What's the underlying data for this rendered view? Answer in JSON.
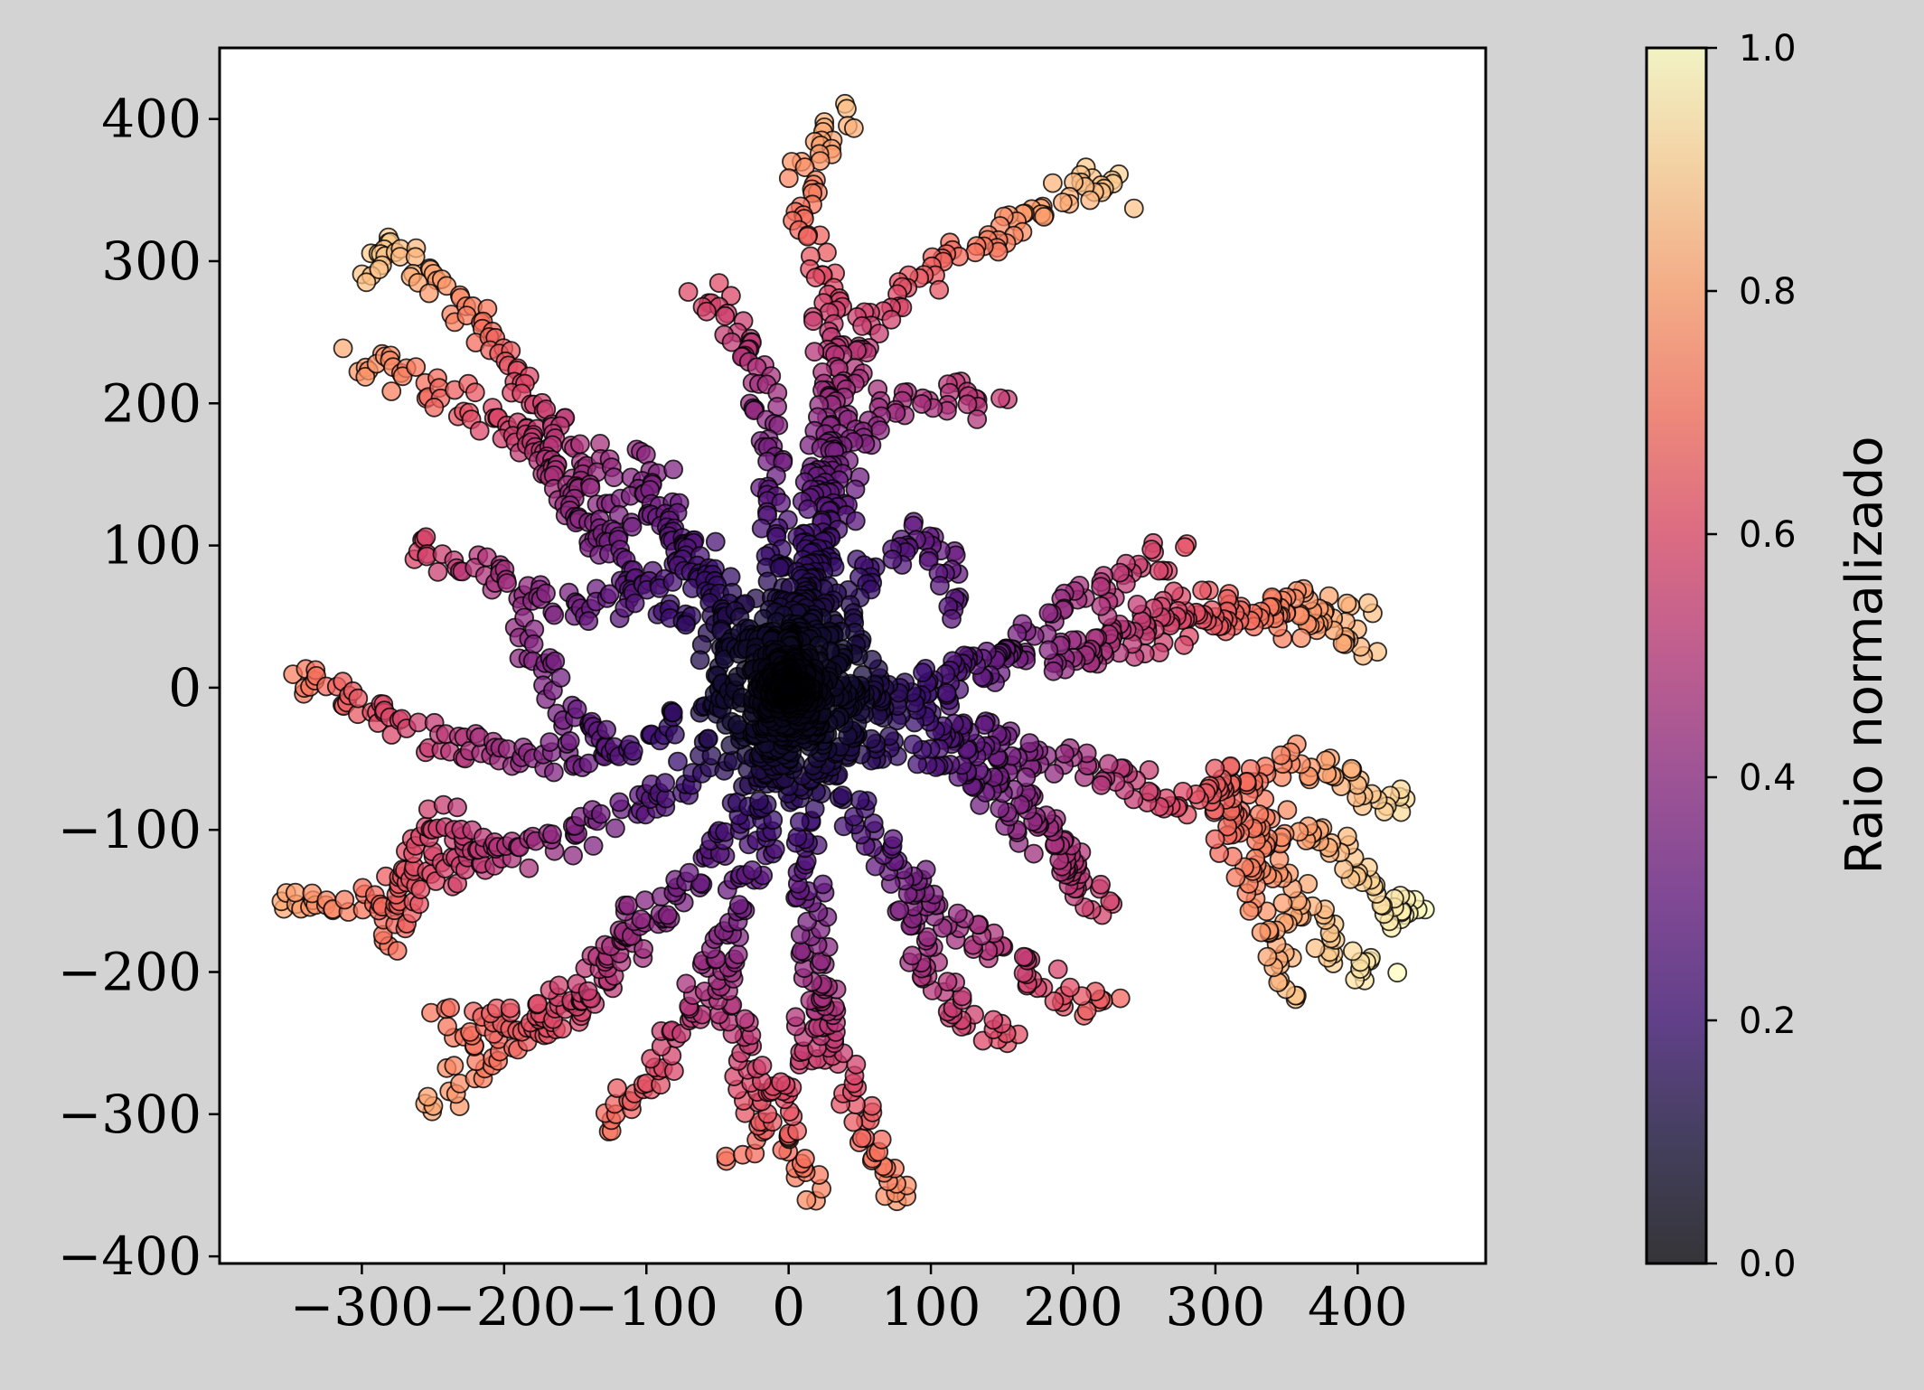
{
  "chart_data": {
    "type": "scatter",
    "title": "",
    "xlabel": "",
    "ylabel": "",
    "xlim": [
      -400,
      490
    ],
    "ylim": [
      -405,
      450
    ],
    "xticks": [
      -300,
      -200,
      -100,
      0,
      100,
      200,
      300,
      400
    ],
    "xtick_labels": [
      "−300",
      "−200",
      "−100",
      "0",
      "100",
      "200",
      "300",
      "400"
    ],
    "yticks": [
      -400,
      -300,
      -200,
      -100,
      0,
      100,
      200,
      300,
      400
    ],
    "ytick_labels": [
      "−400",
      "−300",
      "−200",
      "−100",
      "0",
      "100",
      "200",
      "300",
      "400"
    ],
    "grid": false,
    "colormap": "magma",
    "color_by": "normalized radius",
    "marker_edge_color": "#000000",
    "marker_alpha": 0.75,
    "arms": [
      {
        "x": [
          0,
          5,
          10,
          18,
          25,
          40,
          55,
          70,
          90,
          110,
          130,
          150,
          175,
          200,
          215,
          240
        ],
        "y": [
          0,
          40,
          80,
          130,
          175,
          220,
          250,
          270,
          285,
          300,
          310,
          325,
          340,
          350,
          360,
          345
        ]
      },
      {
        "x": [
          0,
          10,
          18,
          25,
          30,
          25,
          15,
          10,
          20,
          35,
          45
        ],
        "y": [
          0,
          60,
          110,
          170,
          230,
          280,
          320,
          360,
          385,
          395,
          405
        ]
      },
      {
        "x": [
          0,
          -5,
          -10,
          -15,
          -20,
          -35,
          -50,
          -65
        ],
        "y": [
          0,
          60,
          120,
          180,
          230,
          250,
          270,
          280
        ]
      },
      {
        "x": [
          0,
          20,
          40,
          55,
          70,
          90,
          110,
          130,
          150
        ],
        "y": [
          0,
          70,
          140,
          180,
          200,
          205,
          210,
          200,
          195
        ]
      },
      {
        "x": [
          0,
          20,
          40,
          55,
          70,
          85,
          100,
          115,
          120
        ],
        "y": [
          0,
          30,
          60,
          80,
          95,
          100,
          110,
          70,
          50
        ]
      },
      {
        "x": [
          0,
          -20,
          -40,
          -60,
          -80,
          -110,
          -140,
          -170,
          -200,
          -230,
          -260,
          -280,
          -300
        ],
        "y": [
          0,
          30,
          60,
          90,
          110,
          130,
          160,
          190,
          230,
          270,
          300,
          315,
          285
        ]
      },
      {
        "x": [
          -110,
          -140,
          -170,
          -200,
          -230,
          -260,
          -290,
          -310
        ],
        "y": [
          100,
          130,
          160,
          180,
          200,
          215,
          225,
          230
        ]
      },
      {
        "x": [
          -80,
          -110,
          -130,
          -160,
          -190,
          -220,
          -250,
          -270
        ],
        "y": [
          90,
          70,
          55,
          60,
          70,
          80,
          95,
          100
        ]
      },
      {
        "x": [
          -40,
          -60,
          -80,
          -90,
          -100,
          -110
        ],
        "y": [
          30,
          70,
          110,
          140,
          160,
          165
        ]
      },
      {
        "x": [
          -60,
          -80,
          -100,
          -130,
          -150,
          -170,
          -190
        ],
        "y": [
          40,
          60,
          70,
          100,
          130,
          160,
          185
        ]
      },
      {
        "x": [
          0,
          -40,
          -80,
          -120,
          -160,
          -200,
          -240,
          -270,
          -300,
          -330,
          -350
        ],
        "y": [
          0,
          -10,
          -25,
          -40,
          -50,
          -45,
          -40,
          -30,
          -10,
          0,
          10
        ]
      },
      {
        "x": [
          -120,
          -150,
          -170,
          -180,
          -190
        ],
        "y": [
          -40,
          -20,
          10,
          30,
          50
        ]
      },
      {
        "x": [
          0,
          -40,
          -80,
          -120,
          -160,
          -200,
          -240,
          -270,
          -300,
          -330,
          -360
        ],
        "y": [
          0,
          -40,
          -70,
          -90,
          -110,
          -120,
          -130,
          -140,
          -150,
          -155,
          -150
        ]
      },
      {
        "x": [
          -200,
          -230,
          -250,
          -270,
          -285
        ],
        "y": [
          -120,
          -100,
          -90,
          -160,
          -180
        ]
      },
      {
        "x": [
          0,
          -20,
          -50,
          -80,
          -110,
          -140,
          -170,
          -200,
          -230,
          -250
        ],
        "y": [
          0,
          -60,
          -120,
          -150,
          -180,
          -210,
          -230,
          -250,
          -270,
          -300
        ]
      },
      {
        "x": [
          -100,
          -130,
          -160,
          -190,
          -220,
          -250
        ],
        "y": [
          -150,
          -200,
          -230,
          -230,
          -240,
          -230
        ]
      },
      {
        "x": [
          0,
          -10,
          -30,
          -50,
          -70,
          -90,
          -110,
          -130
        ],
        "y": [
          0,
          -80,
          -140,
          -190,
          -230,
          -260,
          -290,
          -310
        ]
      },
      {
        "x": [
          -50,
          -40,
          -30,
          -20,
          -30,
          -40
        ],
        "y": [
          -190,
          -230,
          -260,
          -290,
          -320,
          -330
        ]
      },
      {
        "x": [
          0,
          10,
          15,
          20,
          25,
          35,
          50,
          60,
          70,
          80,
          90
        ],
        "y": [
          0,
          -80,
          -140,
          -190,
          -230,
          -270,
          -300,
          -320,
          -340,
          -355,
          -360
        ]
      },
      {
        "x": [
          20,
          10,
          -10,
          5,
          20
        ],
        "y": [
          -200,
          -260,
          -290,
          -330,
          -360
        ]
      },
      {
        "x": [
          0,
          30,
          60,
          90,
          110,
          130,
          150,
          170,
          190,
          210,
          225
        ],
        "y": [
          0,
          -60,
          -110,
          -140,
          -160,
          -175,
          -190,
          -200,
          -210,
          -220,
          -230
        ]
      },
      {
        "x": [
          80,
          90,
          100,
          120,
          140,
          160
        ],
        "y": [
          -140,
          -180,
          -210,
          -230,
          -240,
          -250
        ]
      },
      {
        "x": [
          0,
          50,
          100,
          140,
          170,
          190,
          210,
          225
        ],
        "y": [
          0,
          -40,
          -50,
          -70,
          -100,
          -120,
          -140,
          -160
        ]
      },
      {
        "x": [
          0,
          60,
          120,
          180,
          230,
          270,
          310,
          340,
          360,
          380,
          400,
          420,
          440
        ],
        "y": [
          0,
          -10,
          -30,
          -50,
          -60,
          -80,
          -70,
          -60,
          -50,
          -60,
          -70,
          -80,
          -75
        ]
      },
      {
        "x": [
          300,
          320,
          340,
          360,
          380,
          400,
          420
        ],
        "y": [
          -60,
          -90,
          -120,
          -150,
          -180,
          -200,
          -190
        ]
      },
      {
        "x": [
          300,
          320,
          340,
          350,
          360
        ],
        "y": [
          -80,
          -130,
          -170,
          -200,
          -220
        ]
      },
      {
        "x": [
          320,
          350,
          380,
          400,
          420,
          430,
          440
        ],
        "y": [
          -80,
          -100,
          -110,
          -130,
          -150,
          -170,
          -140
        ]
      },
      {
        "x": [
          0,
          60,
          120,
          180,
          230,
          270,
          300,
          330,
          360,
          390,
          410
        ],
        "y": [
          0,
          -5,
          10,
          20,
          30,
          40,
          50,
          55,
          60,
          55,
          50
        ]
      },
      {
        "x": [
          200,
          230,
          260,
          290,
          320,
          350,
          380,
          410
        ],
        "y": [
          20,
          40,
          55,
          60,
          55,
          45,
          35,
          30
        ]
      },
      {
        "x": [
          100,
          140,
          170,
          200,
          230,
          260,
          280
        ],
        "y": [
          0,
          20,
          40,
          60,
          75,
          90,
          95
        ]
      },
      {
        "x": [
          100,
          140,
          170,
          190,
          210
        ],
        "y": [
          -20,
          -50,
          -80,
          -110,
          -150
        ]
      }
    ],
    "colorbar": {
      "label": "Raio normalizado",
      "min": 0.0,
      "max": 1.0,
      "ticks": [
        0.0,
        0.2,
        0.4,
        0.6,
        0.8,
        1.0
      ],
      "tick_labels": [
        "0.0",
        "0.2",
        "0.4",
        "0.6",
        "0.8",
        "1.0"
      ]
    }
  }
}
